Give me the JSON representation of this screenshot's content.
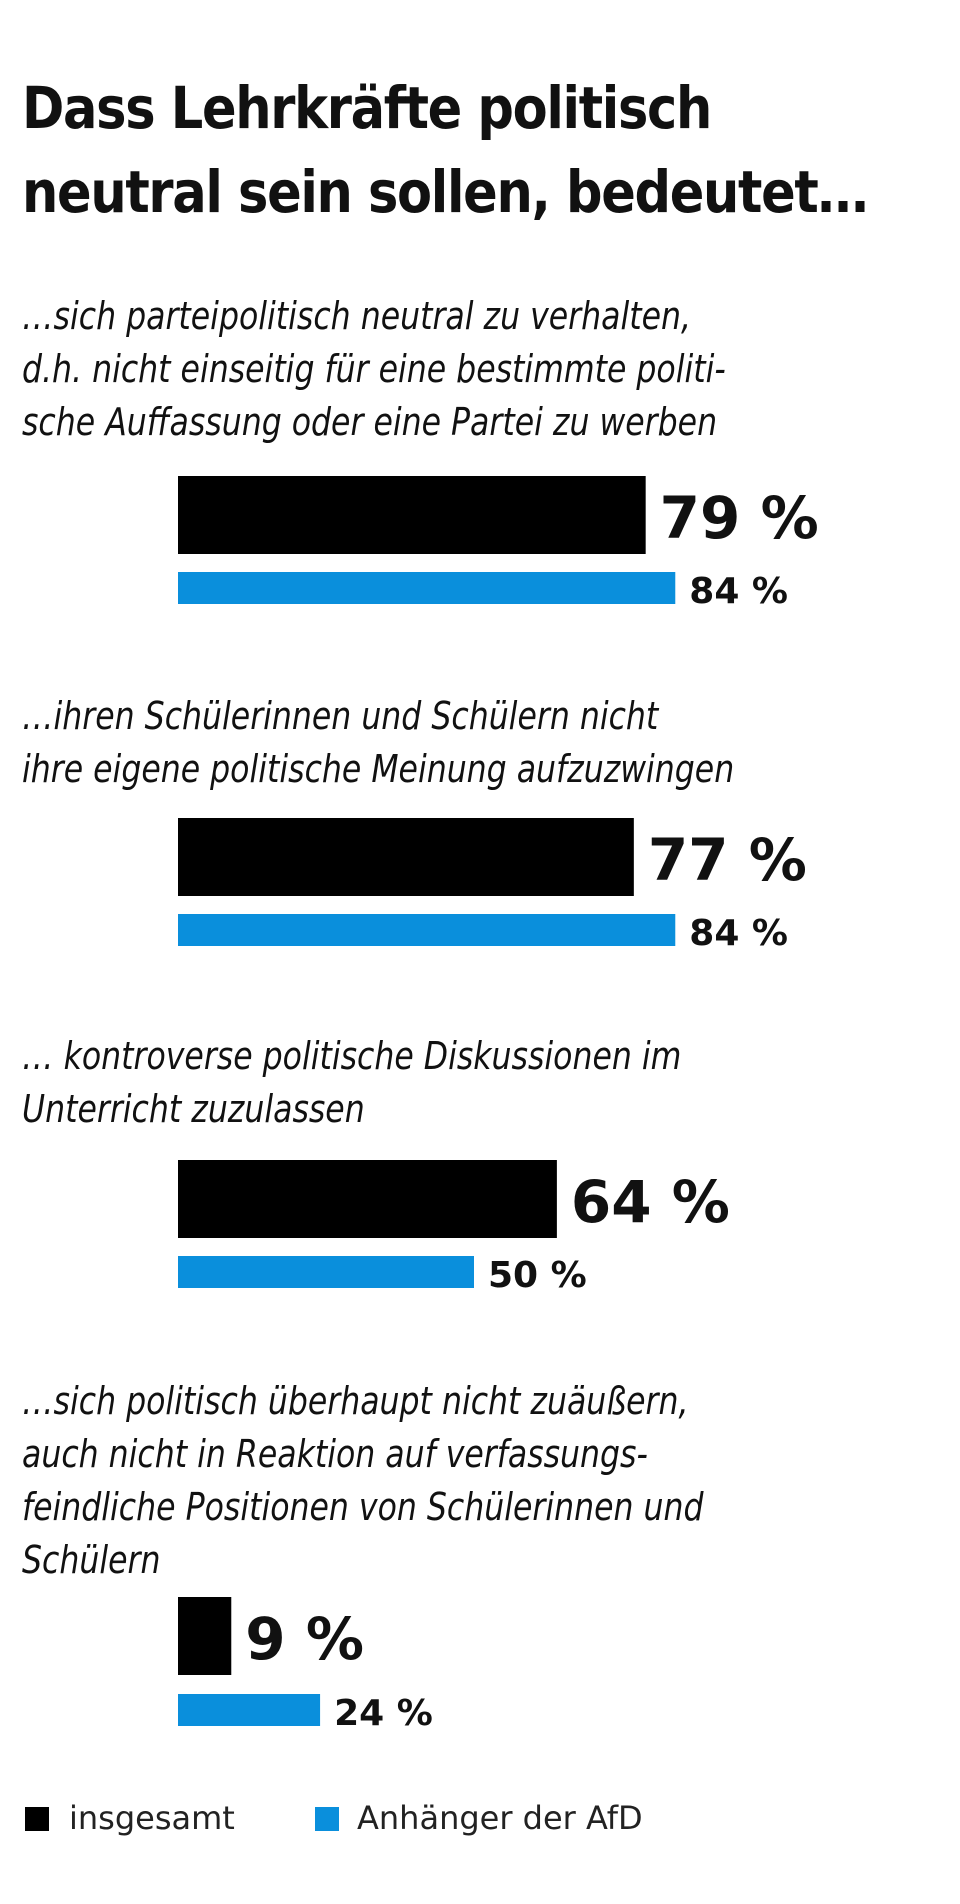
{
  "chart_data": {
    "type": "bar",
    "orientation": "horizontal",
    "title": "Dass Lehrkräfte politisch neutral sein sollen, bedeutet…",
    "categories": [
      "…sich parteipolitisch neutral zu verhalten, d.h. nicht einseitig für eine bestimmte politische Auffassung oder eine Partei zu werben",
      "…ihren Schülerinnen und Schülern nicht ihre eigene politische Meinung aufzuzwingen",
      "… kontroverse politische Diskussionen im Unterricht zuzulassen",
      "…sich politisch überhaupt nicht zuäußern, auch nicht in Reaktion auf verfassungsfeindliche Positionen von Schülerinnen und Schülern"
    ],
    "category_label_lines": [
      [
        "…sich parteipolitisch neutral zu verhalten,",
        "d.h. nicht einseitig für eine bestimmte politi-",
        "sche Auffassung oder eine Partei zu werben"
      ],
      [
        "…ihren Schülerinnen und Schülern nicht",
        "ihre eigene politische Meinung aufzuzwingen"
      ],
      [
        "… kontroverse politische Diskussionen im",
        "Unterricht zuzulassen"
      ],
      [
        "…sich politisch überhaupt nicht zuäußern,",
        "auch nicht in Reaktion auf verfassungs-",
        "feindliche Positionen von Schülerinnen und",
        "Schülern"
      ]
    ],
    "series": [
      {
        "name": "insgesamt",
        "color": "#000000",
        "values": [
          79,
          77,
          64,
          9
        ],
        "labels": [
          "79 %",
          "77 %",
          "64 %",
          "9 %"
        ]
      },
      {
        "name": "Anhänger der AfD",
        "color": "#0a8fdc",
        "values": [
          84,
          84,
          50,
          24
        ],
        "labels": [
          "84 %",
          "84 %",
          "50 %",
          "24 %"
        ]
      }
    ],
    "unit": "%",
    "xlim": [
      0,
      100
    ],
    "grid": false,
    "legend": "bottom-left"
  }
}
